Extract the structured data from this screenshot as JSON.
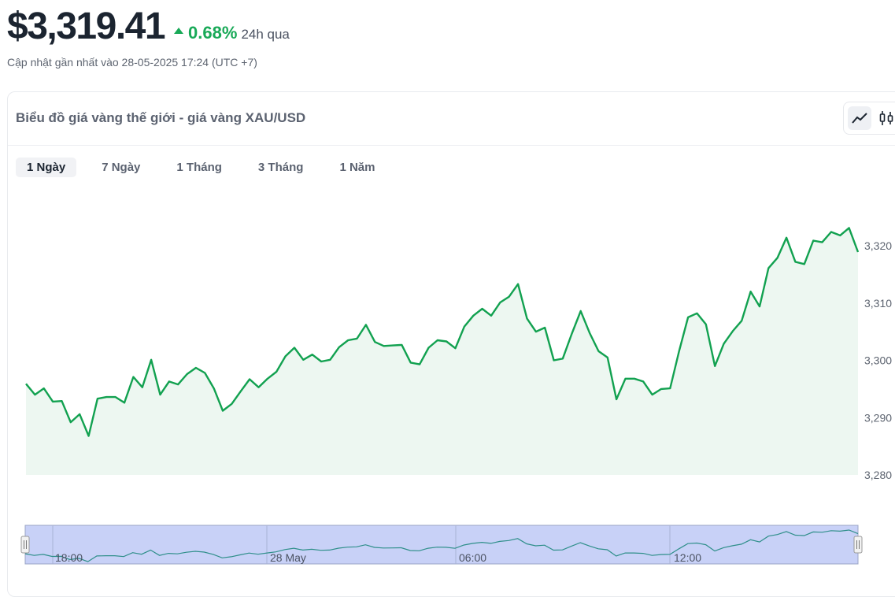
{
  "header": {
    "price": "$3,319.41",
    "change_pct": "0.68%",
    "change_period": "24h qua",
    "updated": "Cập nhật gần nhất vào 28-05-2025 17:24 (UTC +7)"
  },
  "card": {
    "title": "Biểu đồ giá vàng thế giới - giá vàng XAU/USD",
    "tabs": [
      "1 Ngày",
      "7 Ngày",
      "1 Tháng",
      "3 Tháng",
      "1 Năm"
    ],
    "active_tab": 0,
    "view_buttons": [
      "line-chart-icon",
      "candlestick-icon"
    ]
  },
  "colors": {
    "up": "#18a957",
    "line": "#12a150",
    "fill": "#edf7f1",
    "navigator_fill": "#c8d1f7"
  },
  "chart_data": {
    "type": "area",
    "y_ticks": [
      "3,280",
      "3,290",
      "3,300",
      "3,310",
      "3,320"
    ],
    "ylim": [
      3280,
      3320
    ],
    "navigator_labels": [
      "18:00",
      "28 May",
      "06:00",
      "12:00"
    ],
    "values": [
      3295.9,
      3294.0,
      3295.1,
      3292.8,
      3292.9,
      3289.2,
      3290.6,
      3286.8,
      3293.3,
      3293.6,
      3293.6,
      3292.6,
      3297.1,
      3295.3,
      3300.1,
      3294.0,
      3296.3,
      3295.8,
      3297.6,
      3298.7,
      3297.8,
      3295.1,
      3291.2,
      3292.4,
      3294.6,
      3296.7,
      3295.3,
      3296.8,
      3298.0,
      3300.7,
      3302.2,
      3300.1,
      3301.0,
      3299.8,
      3300.1,
      3302.3,
      3303.5,
      3303.8,
      3306.2,
      3303.2,
      3302.5,
      3302.6,
      3302.7,
      3299.6,
      3299.3,
      3302.2,
      3303.5,
      3303.3,
      3302.1,
      3305.9,
      3307.8,
      3309.0,
      3307.8,
      3310.1,
      3311.1,
      3313.3,
      3307.3,
      3305.0,
      3305.7,
      3300.0,
      3300.3,
      3304.6,
      3308.6,
      3304.8,
      3301.6,
      3300.5,
      3293.2,
      3296.8,
      3296.8,
      3296.3,
      3294.0,
      3295.0,
      3295.1,
      3301.6,
      3307.5,
      3308.2,
      3306.3,
      3299.0,
      3302.9,
      3305.1,
      3306.9,
      3312.0,
      3309.4,
      3316.1,
      3317.9,
      3321.4,
      3317.2,
      3316.8,
      3320.9,
      3320.6,
      3322.4,
      3321.8,
      3323.1,
      3318.9
    ]
  }
}
